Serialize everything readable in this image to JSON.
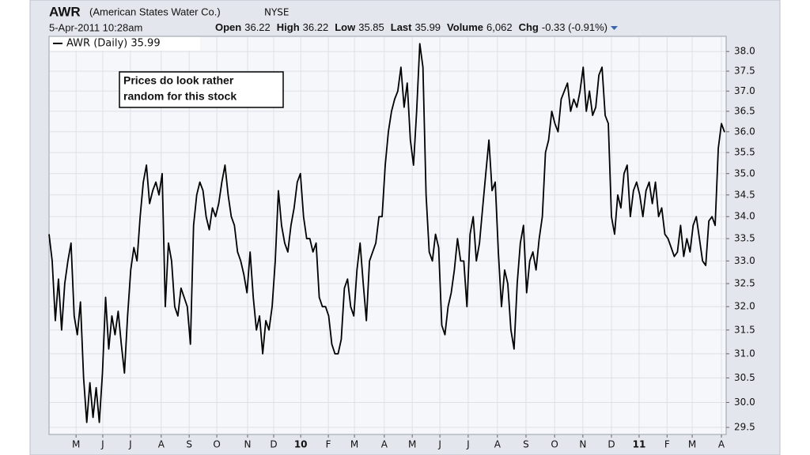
{
  "chart_data": {
    "type": "line",
    "title": "AWR",
    "subtitle": "(American States Water Co.)",
    "exchange": "NYSE",
    "date": "5-Apr-2011 10:28am",
    "quote": [
      {
        "label": "Open",
        "value": "36.22"
      },
      {
        "label": "High",
        "value": "36.22"
      },
      {
        "label": "Low",
        "value": "35.85"
      },
      {
        "label": "Last",
        "value": "35.99"
      },
      {
        "label": "Volume",
        "value": "6,062"
      },
      {
        "label": "Chg",
        "value": "-0.33 (-0.91%)"
      }
    ],
    "annotation": [
      "Prices do look rather",
      "random for this stock"
    ],
    "log_scale": true,
    "grid": true,
    "legend": "top-left",
    "xlim": [
      0,
      215
    ],
    "ylim": [
      29.36,
      38.39
    ],
    "xticks": [
      {
        "value": 8.6,
        "label": "M"
      },
      {
        "value": 17.1,
        "label": "J"
      },
      {
        "value": 25.9,
        "label": "J"
      },
      {
        "value": 35.7,
        "label": "A"
      },
      {
        "value": 44.6,
        "label": "S"
      },
      {
        "value": 53.4,
        "label": "O"
      },
      {
        "value": 63.2,
        "label": "N"
      },
      {
        "value": 71.5,
        "label": "D"
      },
      {
        "value": 80.1,
        "label": "10"
      },
      {
        "value": 88.9,
        "label": "F"
      },
      {
        "value": 97.2,
        "label": "M"
      },
      {
        "value": 106.7,
        "label": "A"
      },
      {
        "value": 115.6,
        "label": "M"
      },
      {
        "value": 124.4,
        "label": "J"
      },
      {
        "value": 133.4,
        "label": "J"
      },
      {
        "value": 142.7,
        "label": "A"
      },
      {
        "value": 151.8,
        "label": "S"
      },
      {
        "value": 160.9,
        "label": "O"
      },
      {
        "value": 169.9,
        "label": "N"
      },
      {
        "value": 179.0,
        "label": "D"
      },
      {
        "value": 187.8,
        "label": "11"
      },
      {
        "value": 196.7,
        "label": "F"
      },
      {
        "value": 204.7,
        "label": "M"
      },
      {
        "value": 214.0,
        "label": "A"
      }
    ],
    "yticks": [
      29.5,
      {
        "value": 30,
        "label": "30.0"
      },
      30.5,
      {
        "value": 31,
        "label": "31.0"
      },
      31.5,
      {
        "value": 32,
        "label": "32.0"
      },
      32.5,
      {
        "value": 33,
        "label": "33.0"
      },
      33.5,
      {
        "value": 34,
        "label": "34.0"
      },
      34.5,
      {
        "value": 35,
        "label": "35.0"
      },
      35.5,
      {
        "value": 36,
        "label": "36.0"
      },
      36.5,
      {
        "value": 37,
        "label": "37.0"
      },
      37.5,
      {
        "value": 38,
        "label": "38.0"
      }
    ],
    "series": [
      {
        "name": "AWR (Daily) 35.99",
        "color": "#000000",
        "values": [
          33.6,
          33.0,
          31.7,
          32.6,
          31.5,
          32.5,
          33.0,
          33.4,
          31.8,
          31.4,
          32.1,
          30.5,
          29.6,
          30.4,
          29.7,
          30.3,
          29.6,
          30.6,
          32.2,
          31.1,
          31.8,
          31.4,
          31.9,
          31.2,
          30.6,
          31.8,
          32.8,
          33.3,
          33.0,
          34.0,
          34.8,
          35.2,
          34.3,
          34.6,
          34.8,
          34.5,
          35.0,
          32.0,
          33.4,
          33.0,
          32.0,
          31.8,
          32.4,
          32.2,
          32.0,
          31.2,
          33.8,
          34.5,
          34.8,
          34.6,
          34.0,
          33.7,
          34.2,
          34.0,
          34.3,
          34.8,
          35.2,
          34.5,
          34.0,
          33.8,
          33.2,
          33.0,
          32.7,
          32.3,
          33.2,
          32.2,
          31.5,
          31.8,
          31.0,
          31.7,
          31.5,
          32.0,
          33.0,
          34.6,
          33.8,
          33.4,
          33.2,
          33.8,
          34.2,
          34.8,
          35.0,
          34.0,
          33.5,
          33.5,
          33.2,
          33.4,
          32.2,
          32.0,
          32.0,
          31.8,
          31.2,
          31.0,
          31.0,
          31.3,
          32.4,
          32.6,
          32.0,
          31.8,
          32.8,
          33.4,
          32.5,
          31.7,
          33.0,
          33.2,
          33.4,
          34.0,
          34.0,
          35.2,
          36.0,
          36.5,
          36.8,
          37.0,
          37.6,
          36.6,
          37.2,
          35.8,
          35.2,
          36.5,
          38.2,
          37.6,
          34.5,
          33.2,
          33.0,
          33.6,
          33.3,
          31.6,
          31.4,
          32.0,
          32.3,
          32.8,
          33.5,
          33.0,
          33.0,
          32.0,
          33.6,
          34.0,
          33.0,
          33.4,
          34.2,
          35.0,
          35.8,
          34.6,
          34.8,
          33.2,
          32.0,
          32.8,
          32.5,
          31.5,
          31.1,
          32.5,
          33.4,
          33.8,
          32.3,
          33.0,
          33.2,
          32.8,
          33.5,
          34.0,
          35.5,
          35.8,
          36.5,
          36.2,
          36.0,
          36.8,
          37.0,
          37.2,
          36.5,
          36.8,
          36.6,
          37.0,
          37.6,
          36.5,
          37.0,
          36.4,
          36.6,
          37.4,
          37.6,
          36.4,
          36.2,
          34.0,
          33.6,
          34.5,
          34.2,
          35.0,
          35.2,
          34.0,
          34.6,
          34.8,
          34.5,
          34.0,
          34.6,
          34.8,
          34.3,
          34.8,
          34.0,
          34.2,
          33.6,
          33.5,
          33.3,
          33.1,
          33.2,
          33.8,
          33.1,
          33.5,
          33.2,
          33.8,
          34.0,
          33.5,
          33.0,
          32.9,
          33.9,
          34.0,
          33.8,
          35.6,
          36.2,
          35.99
        ]
      }
    ]
  }
}
